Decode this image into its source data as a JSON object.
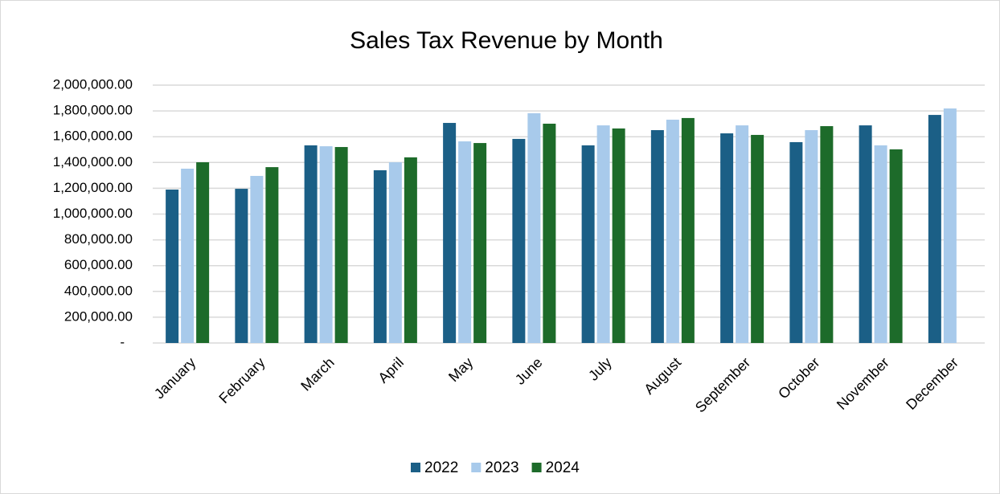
{
  "chart_data": {
    "type": "bar",
    "title": "Sales Tax Revenue by Month",
    "categories": [
      "January",
      "February",
      "March",
      "April",
      "May",
      "June",
      "July",
      "August",
      "September",
      "October",
      "November",
      "December"
    ],
    "series": [
      {
        "name": "2022",
        "color": "#1b5f86",
        "values": [
          1190000,
          1196000,
          1533000,
          1340000,
          1707000,
          1583000,
          1533000,
          1651000,
          1626000,
          1558000,
          1688000,
          1769000
        ]
      },
      {
        "name": "2023",
        "color": "#a8caeb",
        "values": [
          1352000,
          1296000,
          1526000,
          1402000,
          1564000,
          1782000,
          1688000,
          1732000,
          1688000,
          1651000,
          1533000,
          1819000
        ]
      },
      {
        "name": "2024",
        "color": "#1d6b2a",
        "values": [
          1402000,
          1364000,
          1520000,
          1440000,
          1551000,
          1701000,
          1664000,
          1745000,
          1614000,
          1682000,
          1502000,
          null
        ]
      }
    ],
    "ylim": [
      0,
      2000000
    ],
    "yticks": [
      {
        "value": 0,
        "label": "-"
      },
      {
        "value": 200000,
        "label": "200,000.00"
      },
      {
        "value": 400000,
        "label": "400,000.00"
      },
      {
        "value": 600000,
        "label": "600,000.00"
      },
      {
        "value": 800000,
        "label": "800,000.00"
      },
      {
        "value": 1000000,
        "label": "1,000,000.00"
      },
      {
        "value": 1200000,
        "label": "1,200,000.00"
      },
      {
        "value": 1400000,
        "label": "1,400,000.00"
      },
      {
        "value": 1600000,
        "label": "1,600,000.00"
      },
      {
        "value": 1800000,
        "label": "1,800,000.00"
      },
      {
        "value": 2000000,
        "label": "2,000,000.00"
      }
    ],
    "grid": true,
    "legend": "bottom"
  }
}
